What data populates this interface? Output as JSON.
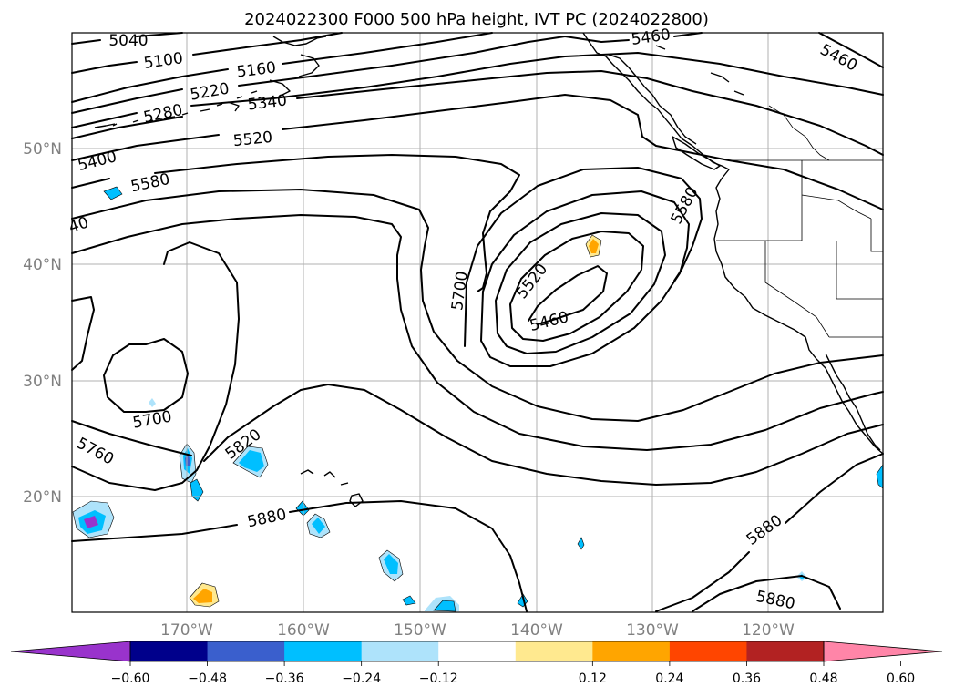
{
  "map": {
    "title": "2024022300 F000 500 hPa height, IVT PC (2024022800)",
    "lat_labels": [
      "50°N",
      "40°N",
      "30°N",
      "20°N"
    ],
    "lon_labels": [
      "170°W",
      "160°W",
      "150°W",
      "140°W",
      "130°W",
      "120°W"
    ],
    "extent": {
      "lon": [
        -180,
        -110.4
      ],
      "lat": [
        10,
        59
      ]
    },
    "grid": true,
    "contour_labels": [
      "5040",
      "5100",
      "5160",
      "5220",
      "5280",
      "5340",
      "5400",
      "5520",
      "5580",
      "40",
      "5460",
      "5460",
      "5700",
      "5520",
      "5460",
      "5580",
      "5700",
      "5760",
      "5820",
      "5880",
      "5880",
      "5880"
    ],
    "shading": {
      "variable": "IVT PC",
      "colorbar_ticks": [
        "−0.60",
        "−0.48",
        "−0.36",
        "−0.24",
        "−0.12",
        "0.12",
        "0.24",
        "0.36",
        "0.48",
        "0.60"
      ],
      "colors": [
        "#9933cc",
        "#00008b",
        "#3a5fcd",
        "#00bfff",
        "#aee3fb",
        "#ffffff",
        "#ffe98f",
        "#ffa500",
        "#ff4500",
        "#b22222",
        "#ff85a8"
      ]
    },
    "contour_levels_dam": "500 hPa geopotential height, 60 m interval"
  }
}
